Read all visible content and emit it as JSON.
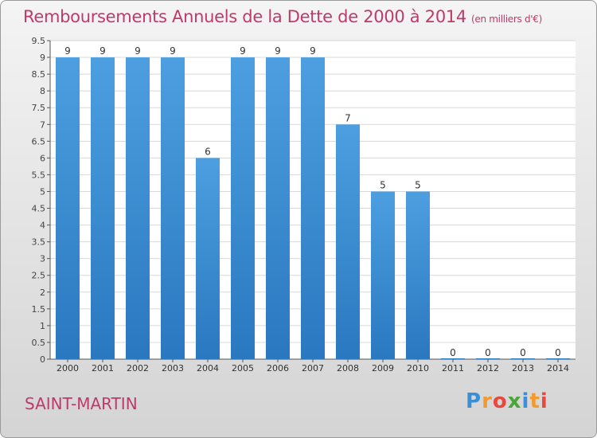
{
  "header": {
    "title": "Remboursements Annuels de la Dette de 2000 à 2014",
    "unit": "(en milliers d'€)"
  },
  "footer": {
    "location": "SAINT-MARTIN",
    "brand": "Proxiti",
    "brand_letters": [
      {
        "ch": "P",
        "color": "#3a8fd6"
      },
      {
        "ch": "r",
        "color": "#f29a2e"
      },
      {
        "ch": "o",
        "color": "#e8483d"
      },
      {
        "ch": "x",
        "color": "#4aa63a"
      },
      {
        "ch": "i",
        "color": "#3a8fd6"
      },
      {
        "ch": "t",
        "color": "#f29a2e"
      },
      {
        "ch": "i",
        "color": "#e8483d"
      }
    ]
  },
  "chart_data": {
    "type": "bar",
    "categories": [
      "2000",
      "2001",
      "2002",
      "2003",
      "2004",
      "2005",
      "2006",
      "2007",
      "2008",
      "2009",
      "2010",
      "2011",
      "2012",
      "2013",
      "2014"
    ],
    "values": [
      9,
      9,
      9,
      9,
      6,
      9,
      9,
      9,
      7,
      5,
      5,
      0,
      0,
      0,
      0
    ],
    "value_labels": [
      "9",
      "9",
      "9",
      "9",
      "6",
      "9",
      "9",
      "9",
      "7",
      "5",
      "5",
      "0",
      "0",
      "0",
      "0"
    ],
    "ylim": [
      0,
      9.5
    ],
    "y_ticks": [
      {
        "v": 0,
        "label": "0"
      },
      {
        "v": 0.5,
        "label": "0.5"
      },
      {
        "v": 1,
        "label": "1"
      },
      {
        "v": 1.5,
        "label": "1.5"
      },
      {
        "v": 2,
        "label": "2"
      },
      {
        "v": 2.5,
        "label": "2.5"
      },
      {
        "v": 3,
        "label": "3"
      },
      {
        "v": 3.5,
        "label": "3.5"
      },
      {
        "v": 4,
        "label": "4"
      },
      {
        "v": 4.5,
        "label": "4.5"
      },
      {
        "v": 5,
        "label": "5"
      },
      {
        "v": 5.5,
        "label": "5.5"
      },
      {
        "v": 6,
        "label": "6"
      },
      {
        "v": 6.5,
        "label": "6.5"
      },
      {
        "v": 7,
        "label": "7"
      },
      {
        "v": 7.5,
        "label": "7.5"
      },
      {
        "v": 8,
        "label": "8"
      },
      {
        "v": 8.5,
        "label": "8.5"
      },
      {
        "v": 9,
        "label": "9"
      },
      {
        "v": 9.5,
        "label": "9.5"
      }
    ],
    "grid": true,
    "bar_color": "#4d9fe0",
    "bar_color_dark": "#2a78c0",
    "title_color": "#c0396b"
  }
}
